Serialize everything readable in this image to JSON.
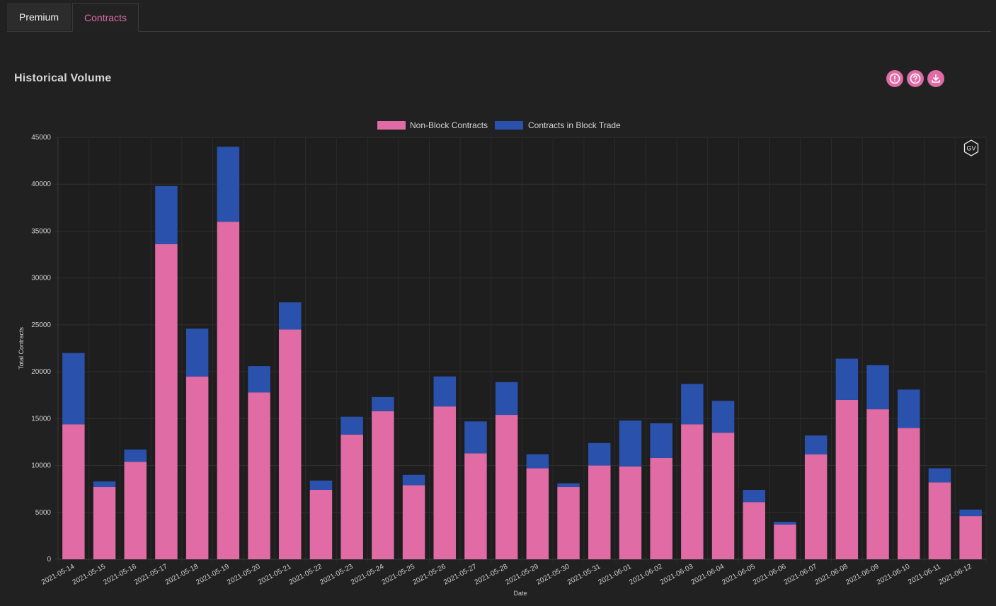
{
  "tabs": [
    {
      "label": "Premium",
      "active": false
    },
    {
      "label": "Contracts",
      "active": true
    }
  ],
  "section": {
    "title": "Historical Volume"
  },
  "actions": [
    {
      "icon": "info-icon"
    },
    {
      "icon": "help-icon"
    },
    {
      "icon": "download-icon"
    }
  ],
  "watermark": {
    "text": "GV"
  },
  "colors": {
    "accent": "#e06ba5",
    "non_block": "#e06ba5",
    "block": "#2a52ad",
    "background": "#212121"
  },
  "chart_data": {
    "type": "bar",
    "stacked": true,
    "xlabel": "Date",
    "ylabel": "Total Contracts",
    "ylim": [
      0,
      45000
    ],
    "yticks": [
      0,
      5000,
      10000,
      15000,
      20000,
      25000,
      30000,
      35000,
      40000,
      45000
    ],
    "grid": true,
    "legend_position": "top-center",
    "categories": [
      "2021-05-14",
      "2021-05-15",
      "2021-05-16",
      "2021-05-17",
      "2021-05-18",
      "2021-05-19",
      "2021-05-20",
      "2021-05-21",
      "2021-05-22",
      "2021-05-23",
      "2021-05-24",
      "2021-05-25",
      "2021-05-26",
      "2021-05-27",
      "2021-05-28",
      "2021-05-29",
      "2021-05-30",
      "2021-05-31",
      "2021-06-01",
      "2021-06-02",
      "2021-06-03",
      "2021-06-04",
      "2021-06-05",
      "2021-06-06",
      "2021-06-07",
      "2021-06-08",
      "2021-06-09",
      "2021-06-10",
      "2021-06-11",
      "2021-06-12"
    ],
    "series": [
      {
        "name": "Non-Block Contracts",
        "color": "#e06ba5",
        "values": [
          14400,
          7700,
          10400,
          33600,
          19500,
          36000,
          17800,
          24500,
          7400,
          13300,
          15800,
          7900,
          16300,
          11300,
          15400,
          9700,
          7700,
          10000,
          9900,
          10800,
          14400,
          13500,
          6100,
          3700,
          11200,
          17000,
          16000,
          14000,
          8200,
          4600
        ]
      },
      {
        "name": "Contracts in Block Trade",
        "color": "#2a52ad",
        "values": [
          7600,
          600,
          1300,
          6200,
          5100,
          8000,
          2800,
          2900,
          1000,
          1900,
          1500,
          1100,
          3200,
          3400,
          3500,
          1500,
          400,
          2400,
          4900,
          3700,
          4300,
          3400,
          1300,
          300,
          2000,
          4400,
          4700,
          4100,
          1500,
          700
        ]
      }
    ]
  }
}
